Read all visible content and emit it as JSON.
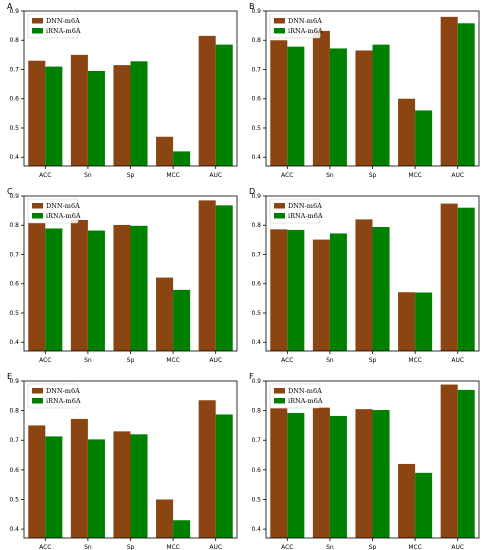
{
  "colors": {
    "DNN-m6A": "#8B4513",
    "iRNA-m6A": "#008000"
  },
  "chart_data": [
    {
      "type": "bar",
      "panel": "A",
      "categories": [
        "ACC",
        "Sn",
        "Sp",
        "MCC",
        "AUC"
      ],
      "ylim": [
        0.37,
        0.9
      ],
      "yticks": [
        "0.4",
        "0.5",
        "0.6",
        "0.7",
        "0.8",
        "0.9"
      ],
      "legend_position": "top-left",
      "series": [
        {
          "name": "DNN-m6A",
          "values": [
            0.73,
            0.75,
            0.715,
            0.47,
            0.815
          ]
        },
        {
          "name": "iRNA-m6A",
          "values": [
            0.71,
            0.695,
            0.728,
            0.42,
            0.785
          ]
        }
      ]
    },
    {
      "type": "bar",
      "panel": "B",
      "categories": [
        "ACC",
        "Sn",
        "Sp",
        "MCC",
        "AUC"
      ],
      "ylim": [
        0.37,
        0.9
      ],
      "yticks": [
        "0.4",
        "0.5",
        "0.6",
        "0.7",
        "0.8",
        "0.9"
      ],
      "legend_position": "top-left",
      "series": [
        {
          "name": "DNN-m6A",
          "values": [
            0.8,
            0.832,
            0.765,
            0.6,
            0.88
          ]
        },
        {
          "name": "iRNA-m6A",
          "values": [
            0.778,
            0.772,
            0.785,
            0.56,
            0.858
          ]
        }
      ]
    },
    {
      "type": "bar",
      "panel": "C",
      "categories": [
        "ACC",
        "Sn",
        "Sp",
        "MCC",
        "AUC"
      ],
      "ylim": [
        0.37,
        0.9
      ],
      "yticks": [
        "0.4",
        "0.5",
        "0.6",
        "0.7",
        "0.8",
        "0.9"
      ],
      "legend_position": "top-left",
      "series": [
        {
          "name": "DNN-m6A",
          "values": [
            0.808,
            0.818,
            0.801,
            0.621,
            0.885
          ]
        },
        {
          "name": "iRNA-m6A",
          "values": [
            0.789,
            0.782,
            0.798,
            0.579,
            0.868
          ]
        }
      ]
    },
    {
      "type": "bar",
      "panel": "D",
      "categories": [
        "ACC",
        "Sn",
        "Sp",
        "MCC",
        "AUC"
      ],
      "ylim": [
        0.37,
        0.9
      ],
      "yticks": [
        "0.4",
        "0.5",
        "0.6",
        "0.7",
        "0.8",
        "0.9"
      ],
      "legend_position": "top-left",
      "series": [
        {
          "name": "DNN-m6A",
          "values": [
            0.786,
            0.751,
            0.82,
            0.571,
            0.874
          ]
        },
        {
          "name": "iRNA-m6A",
          "values": [
            0.784,
            0.772,
            0.794,
            0.57,
            0.86
          ]
        }
      ]
    },
    {
      "type": "bar",
      "panel": "E",
      "categories": [
        "ACC",
        "Sn",
        "Sp",
        "MCC",
        "AUC"
      ],
      "ylim": [
        0.37,
        0.9
      ],
      "yticks": [
        "0.4",
        "0.5",
        "0.6",
        "0.7",
        "0.8",
        "0.9"
      ],
      "legend_position": "top-left",
      "series": [
        {
          "name": "DNN-m6A",
          "values": [
            0.75,
            0.772,
            0.73,
            0.5,
            0.835
          ]
        },
        {
          "name": "iRNA-m6A",
          "values": [
            0.713,
            0.703,
            0.72,
            0.43,
            0.787
          ]
        }
      ]
    },
    {
      "type": "bar",
      "panel": "F",
      "categories": [
        "ACC",
        "Sn",
        "Sp",
        "MCC",
        "AUC"
      ],
      "ylim": [
        0.37,
        0.9
      ],
      "yticks": [
        "0.4",
        "0.5",
        "0.6",
        "0.7",
        "0.8",
        "0.9"
      ],
      "legend_position": "top-left",
      "series": [
        {
          "name": "DNN-m6A",
          "values": [
            0.808,
            0.81,
            0.805,
            0.62,
            0.888
          ]
        },
        {
          "name": "iRNA-m6A",
          "values": [
            0.792,
            0.782,
            0.802,
            0.59,
            0.87
          ]
        }
      ]
    }
  ]
}
